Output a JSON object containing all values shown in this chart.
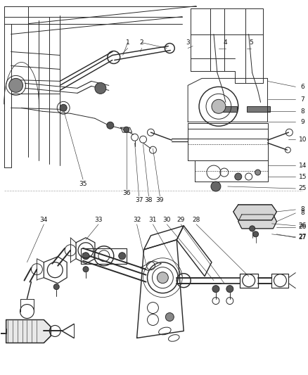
{
  "background_color": "#ffffff",
  "fig_width": 4.38,
  "fig_height": 5.33,
  "dpi": 100,
  "line_color": "#2a2a2a",
  "line_width": 0.7,
  "leader_color": "#333333",
  "label_fontsize": 6.5,
  "label_color": "#111111",
  "right_labels": [
    [
      "6",
      4.32,
      4.1
    ],
    [
      "7",
      4.32,
      3.92
    ],
    [
      "8",
      4.32,
      3.75
    ],
    [
      "9",
      4.32,
      3.6
    ],
    [
      "10",
      4.32,
      3.35
    ],
    [
      "14",
      4.32,
      2.98
    ],
    [
      "15",
      4.32,
      2.82
    ],
    [
      "25",
      4.32,
      2.65
    ],
    [
      "8",
      4.32,
      2.3
    ],
    [
      "26",
      4.32,
      2.1
    ],
    [
      "27",
      4.32,
      1.95
    ]
  ],
  "top_labels": [
    [
      "1",
      1.82,
      4.72
    ],
    [
      "2",
      2.02,
      4.72
    ],
    [
      "3",
      2.68,
      4.72
    ],
    [
      "4",
      3.22,
      4.72
    ],
    [
      "5",
      3.58,
      4.72
    ]
  ],
  "bottom_labels_top": [
    [
      "35",
      1.18,
      2.7
    ],
    [
      "36",
      1.8,
      2.55
    ],
    [
      "37",
      1.98,
      2.45
    ],
    [
      "38",
      2.12,
      2.45
    ],
    [
      "39",
      2.28,
      2.45
    ]
  ],
  "bottom_labels_low": [
    [
      "34",
      0.62,
      2.18
    ],
    [
      "33",
      1.4,
      2.18
    ],
    [
      "32",
      1.95,
      2.18
    ],
    [
      "31",
      2.18,
      2.18
    ],
    [
      "30",
      2.35,
      2.18
    ],
    [
      "29",
      2.55,
      2.18
    ],
    [
      "28",
      2.78,
      2.18
    ]
  ]
}
